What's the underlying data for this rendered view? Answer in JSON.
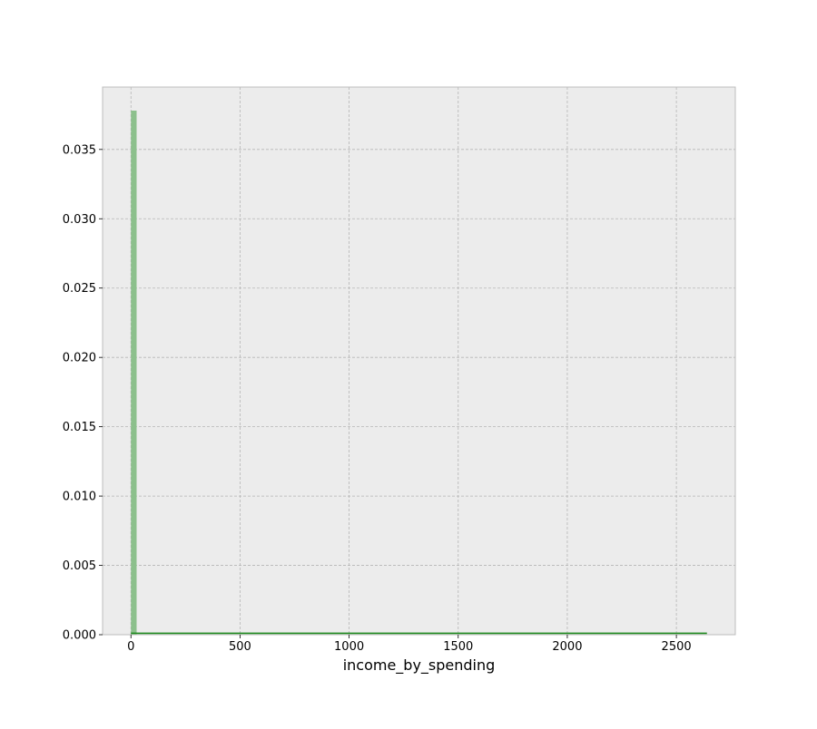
{
  "chart_data": {
    "type": "histogram",
    "title": "",
    "xlabel": "income_by_spending",
    "ylabel": "",
    "xlim": [
      -130,
      2770
    ],
    "ylim": [
      0,
      0.0395
    ],
    "grid": true,
    "legend": "none",
    "x_ticks": [
      0,
      500,
      1000,
      1500,
      2000,
      2500
    ],
    "y_ticks": [
      0.0,
      0.005,
      0.01,
      0.015,
      0.02,
      0.025,
      0.03,
      0.035
    ],
    "x_tick_labels": [
      "0",
      "500",
      "1000",
      "1500",
      "2000",
      "2500"
    ],
    "y_tick_labels": [
      "0.000",
      "0.005",
      "0.010",
      "0.015",
      "0.020",
      "0.025",
      "0.030",
      "0.035"
    ],
    "bins": [
      {
        "x0": 0,
        "x1": 26,
        "density": 0.0378
      }
    ],
    "kde": {
      "x": [
        0,
        300,
        600,
        900,
        1200,
        1500,
        1800,
        2100,
        2400,
        2640
      ],
      "y": [
        0.0001,
        0.0001,
        0.0001,
        0.0001,
        0.0001,
        0.0001,
        0.0001,
        0.0001,
        0.0001,
        0.0001
      ]
    },
    "colors": {
      "bar_fill": "#8cc08c",
      "kde_line": "#1f8a1f",
      "plot_bg": "#ececec",
      "grid": "#b5b5b5",
      "spine": "#bcbcbc"
    }
  }
}
